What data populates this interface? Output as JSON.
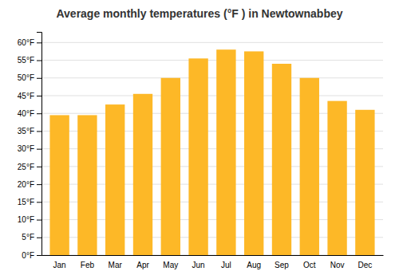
{
  "chart_data": {
    "type": "bar",
    "title": "Average monthly temperatures (°F ) in Newtownabbey",
    "categories": [
      "Jan",
      "Feb",
      "Mar",
      "Apr",
      "May",
      "Jun",
      "Jul",
      "Aug",
      "Sep",
      "Oct",
      "Nov",
      "Dec"
    ],
    "values": [
      39.5,
      39.5,
      42.5,
      45.5,
      50.0,
      55.5,
      58.0,
      57.5,
      54.0,
      50.0,
      43.5,
      41.0
    ],
    "color": "#FDB827",
    "ylim": [
      0,
      63
    ],
    "yticks": [
      {
        "value": 0,
        "label": "0°F"
      },
      {
        "value": 5,
        "label": "5°F"
      },
      {
        "value": 10,
        "label": "10°F"
      },
      {
        "value": 15,
        "label": "15°F"
      },
      {
        "value": 20,
        "label": "20°F"
      },
      {
        "value": 25,
        "label": "25°F"
      },
      {
        "value": 30,
        "label": "30°F"
      },
      {
        "value": 35,
        "label": "35°F"
      },
      {
        "value": 40,
        "label": "40°F"
      },
      {
        "value": 45,
        "label": "45°F"
      },
      {
        "value": 50,
        "label": "50°F"
      },
      {
        "value": 55,
        "label": "55°F"
      },
      {
        "value": 60,
        "label": "60°F"
      }
    ],
    "grid": true
  }
}
